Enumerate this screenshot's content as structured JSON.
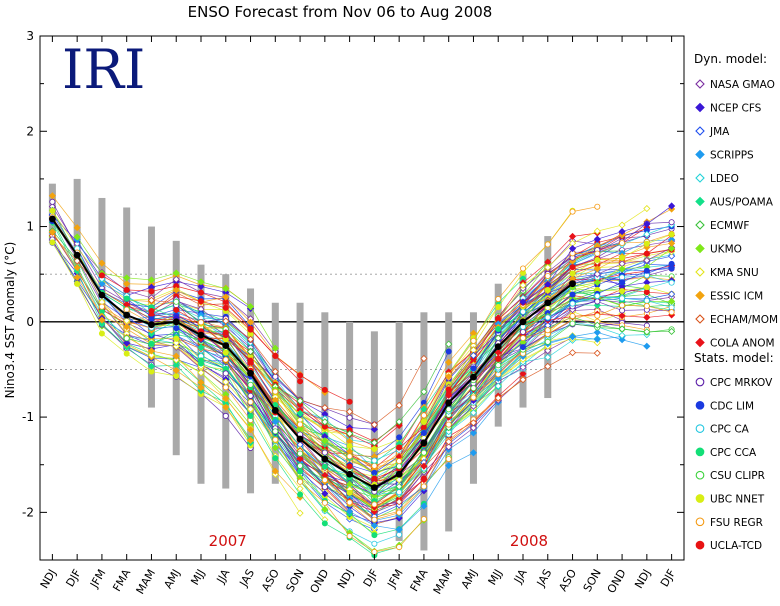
{
  "chart_data": {
    "type": "line",
    "title": "ENSO Forecast from Nov 06 to Aug 2008",
    "ylabel": "Nino3.4 SST Anomaly (°C)",
    "xlabel": "",
    "ylim": [
      -2.5,
      3
    ],
    "yticks": [
      -2,
      -1,
      0,
      1,
      2,
      3
    ],
    "dotted_lines": [
      0.5,
      -0.5
    ],
    "zero_line": 0,
    "logo": "IRI",
    "year_labels": [
      {
        "text": "2007",
        "at": "JJA"
      },
      {
        "text": "2008",
        "at": "JJA"
      }
    ],
    "categories": [
      "NDJ",
      "DJF",
      "JFM",
      "FMA",
      "MAM",
      "AMJ",
      "MJJ",
      "JJA",
      "JAS",
      "ASO",
      "SON",
      "OND",
      "NDJ",
      "DJF",
      "JFM",
      "FMA",
      "MAM",
      "AMJ",
      "MJJ",
      "JJA",
      "JAS",
      "ASO",
      "SON",
      "OND",
      "NDJ",
      "DJF"
    ],
    "observed": {
      "values": [
        1.08,
        0.7,
        0.28,
        0.07,
        -0.03,
        0.0,
        -0.14,
        -0.25,
        -0.54,
        -0.93,
        -1.23,
        -1.44,
        -1.6,
        -1.74,
        -1.6,
        -1.27,
        -0.85,
        -0.58,
        -0.26,
        0.0,
        0.2,
        0.4
      ],
      "color": "#000000"
    },
    "spread_bars": [
      [
        0.85,
        1.45
      ],
      [
        0.6,
        1.5
      ],
      [
        0.1,
        1.3
      ],
      [
        -0.3,
        1.2
      ],
      [
        -0.9,
        1.0
      ],
      [
        -1.4,
        0.85
      ],
      [
        -1.7,
        0.6
      ],
      [
        -1.75,
        0.5
      ],
      [
        -1.8,
        0.35
      ],
      [
        -1.7,
        0.2
      ],
      [
        -1.6,
        0.2
      ],
      [
        -1.7,
        0.1
      ],
      [
        -1.7,
        0.0
      ],
      [
        -2.1,
        -0.1
      ],
      [
        -2.3,
        0.0
      ],
      [
        -2.4,
        0.1
      ],
      [
        -2.2,
        0.1
      ],
      [
        -1.7,
        0.1
      ],
      [
        -1.1,
        0.4
      ],
      [
        -0.9,
        0.5
      ],
      [
        -0.8,
        0.9
      ]
    ],
    "legend": {
      "dyn_heading": "Dyn. model:",
      "stat_heading": "Stats. model:",
      "dynamical": [
        {
          "name": "NASA GMAO",
          "color": "#7a2da0",
          "marker": "diamond-open"
        },
        {
          "name": "NCEP CFS",
          "color": "#3a17d6",
          "marker": "diamond"
        },
        {
          "name": "JMA",
          "color": "#1f4ff0",
          "marker": "diamond-open"
        },
        {
          "name": "SCRIPPS",
          "color": "#1f9bef",
          "marker": "diamond"
        },
        {
          "name": "LDEO",
          "color": "#22d3d8",
          "marker": "diamond-open"
        },
        {
          "name": "AUS/POAMA",
          "color": "#12e08a",
          "marker": "diamond"
        },
        {
          "name": "ECMWF",
          "color": "#3ac23a",
          "marker": "diamond-open"
        },
        {
          "name": "UKMO",
          "color": "#7fe81a",
          "marker": "diamond"
        },
        {
          "name": "KMA SNU",
          "color": "#e3e41a",
          "marker": "diamond-open"
        },
        {
          "name": "ESSIC ICM",
          "color": "#f2a30f",
          "marker": "diamond"
        },
        {
          "name": "ECHAM/MOM",
          "color": "#d9531a",
          "marker": "diamond-open"
        },
        {
          "name": "COLA ANOM",
          "color": "#e8121a",
          "marker": "diamond"
        }
      ],
      "statistical": [
        {
          "name": "CPC MRKOV",
          "color": "#5b1fa8",
          "marker": "circle-open"
        },
        {
          "name": "CDC LIM",
          "color": "#1a3ae0",
          "marker": "circle"
        },
        {
          "name": "CPC CA",
          "color": "#22c7e0",
          "marker": "circle-open"
        },
        {
          "name": "CPC CCA",
          "color": "#13df77",
          "marker": "circle"
        },
        {
          "name": "CSU CLIPR",
          "color": "#3ad23a",
          "marker": "circle-open"
        },
        {
          "name": "UBC NNET",
          "color": "#d8ee14",
          "marker": "circle"
        },
        {
          "name": "FSU REGR",
          "color": "#f49a12",
          "marker": "circle-open"
        },
        {
          "name": "UCLA-TCD",
          "color": "#e81212",
          "marker": "circle"
        }
      ]
    }
  }
}
